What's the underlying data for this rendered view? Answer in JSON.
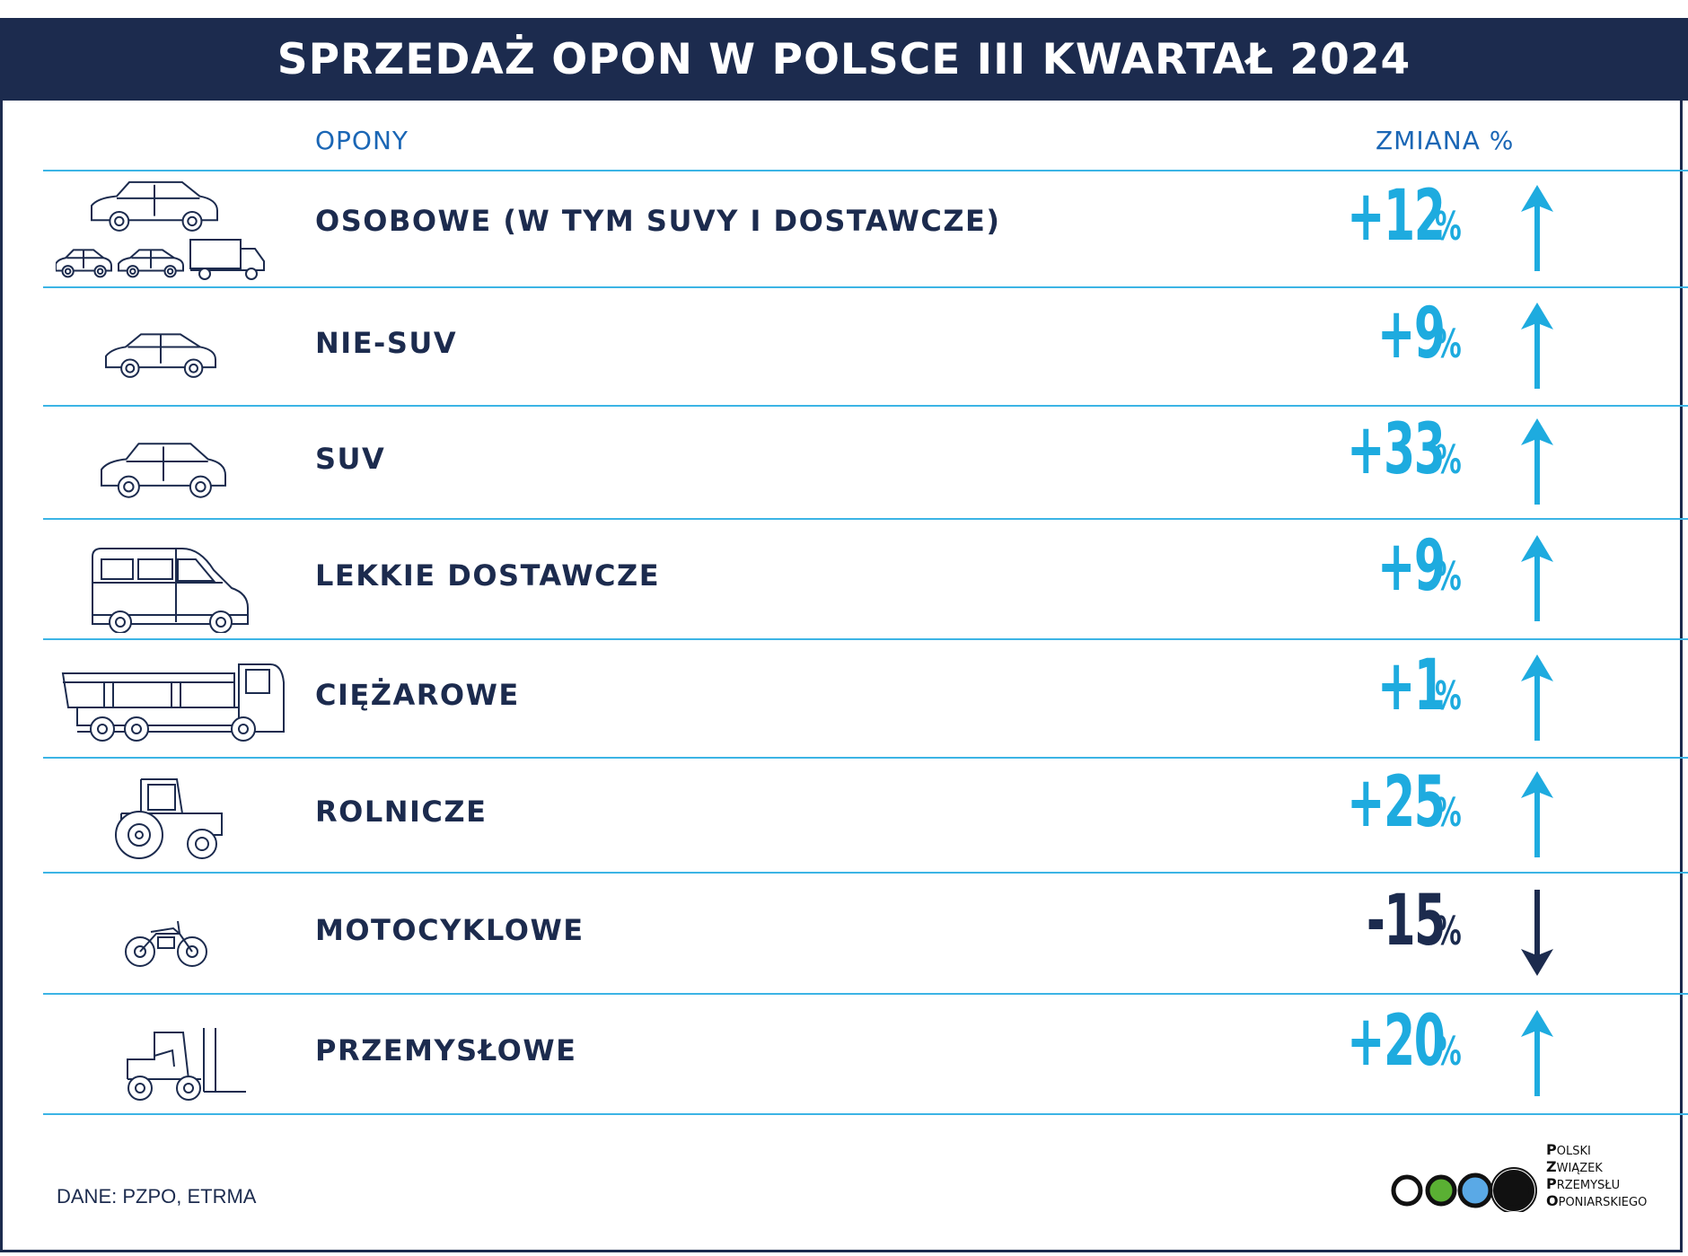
{
  "title": "SPRZEDAŻ OPON W POLSCE III KWARTAŁ 2024",
  "column_headers": {
    "category": "OPONY",
    "change": "ZMIANA %"
  },
  "colors": {
    "navy": "#1c2b4e",
    "cyan": "#1eabdf",
    "line": "#3cb4e5",
    "header_text": "#1a66b5"
  },
  "chart_data": {
    "type": "table",
    "categories": [
      "OSOBOWE (W TYM SUVY I DOSTAWCZE)",
      "NIE-SUV",
      "SUV",
      "LEKKIE DOSTAWCZE",
      "CIĘŻAROWE",
      "ROLNICZE",
      "MOTOCYKLOWE",
      "PRZEMYSŁOWE"
    ],
    "values": [
      12,
      9,
      33,
      9,
      1,
      25,
      -15,
      20
    ],
    "value_labels": [
      "+12",
      "+9",
      "+33",
      "+9",
      "+1",
      "+25",
      "-15",
      "+20"
    ],
    "unit": "%",
    "icons": [
      "cars-group-icon",
      "hatchback-icon",
      "suv-icon",
      "van-icon",
      "truck-icon",
      "tractor-icon",
      "motorcycle-icon",
      "forklift-icon"
    ],
    "directions": [
      "up",
      "up",
      "up",
      "up",
      "up",
      "up",
      "down",
      "up"
    ]
  },
  "source": "DANE: PZPO, ETRMA",
  "logo": {
    "lines": [
      {
        "initial": "P",
        "rest": "OLSKI"
      },
      {
        "initial": "Z",
        "rest": "WIĄZEK"
      },
      {
        "initial": "P",
        "rest": "RZEMYSŁU"
      },
      {
        "initial": "O",
        "rest": "PONIARSKIEGO"
      }
    ],
    "circle_colors": [
      "#ffffff",
      "#5ab033",
      "#5aa9e6",
      "#111111"
    ]
  }
}
